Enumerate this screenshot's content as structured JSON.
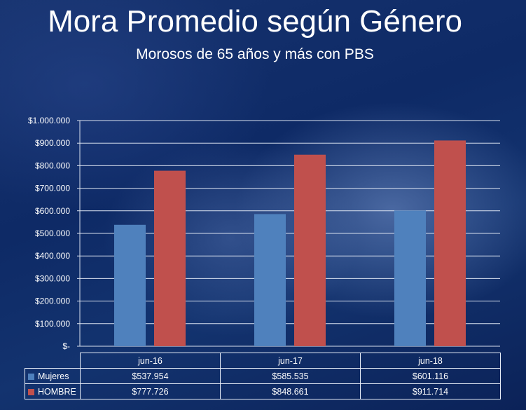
{
  "header": {
    "title": "Mora Promedio según Género",
    "subtitle": "Morosos de 65 años y más con PBS"
  },
  "colors": {
    "mujeres": "#4f81bd",
    "hombre": "#c0504d",
    "gridline": "#d9e1ef"
  },
  "chart_data": {
    "type": "bar",
    "title": "Mora Promedio según Género",
    "subtitle": "Morosos de 65 años y más con PBS",
    "categories": [
      "jun-16",
      "jun-17",
      "jun-18"
    ],
    "series": [
      {
        "name": "Mujeres",
        "values": [
          537954,
          585535,
          601116
        ],
        "labels": [
          "$537.954",
          "$585.535",
          "$601.116"
        ]
      },
      {
        "name": "HOMBRE",
        "values": [
          777726,
          848661,
          911714
        ],
        "labels": [
          "$777.726",
          "$848.661",
          "$911.714"
        ]
      }
    ],
    "ylim": [
      0,
      1000000
    ],
    "yticks": [
      0,
      100000,
      200000,
      300000,
      400000,
      500000,
      600000,
      700000,
      800000,
      900000,
      1000000
    ],
    "ytick_labels": [
      "$-",
      "$100.000",
      "$200.000",
      "$300.000",
      "$400.000",
      "$500.000",
      "$600.000",
      "$700.000",
      "$800.000",
      "$900.000",
      "$1.000.000"
    ],
    "grid": true,
    "legend": "data table below chart",
    "xlabel": "",
    "ylabel": ""
  }
}
